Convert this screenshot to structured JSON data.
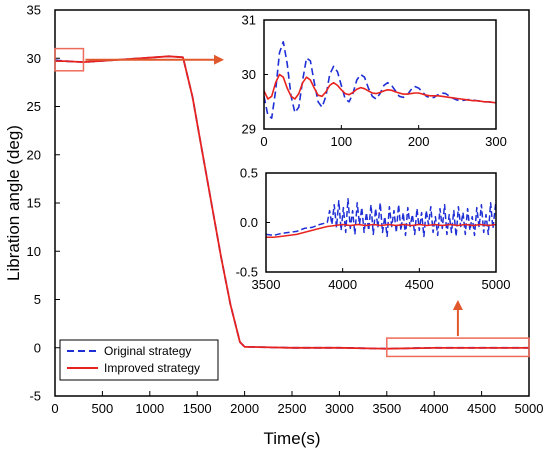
{
  "chart_data": [
    {
      "id": "main",
      "type": "line",
      "xlabel": "Time(s)",
      "ylabel": "Libration angle (deg)",
      "xlim": [
        0,
        5000
      ],
      "ylim": [
        -5,
        35
      ],
      "xticks": [
        0,
        500,
        1000,
        1500,
        2000,
        2500,
        3000,
        3500,
        4000,
        4500,
        5000
      ],
      "yticks": [
        -5,
        0,
        5,
        10,
        15,
        20,
        25,
        30,
        35
      ],
      "grid": false,
      "legend_position": "bottom-left",
      "series": [
        {
          "name": "Original strategy",
          "color": "#1f2fd6",
          "style": "dashed",
          "x": [
            0,
            100,
            300,
            600,
            900,
            1200,
            1350,
            1450,
            1550,
            1650,
            1750,
            1850,
            1950,
            2000,
            2500,
            3000,
            3500,
            4000,
            4500,
            5000
          ],
          "y": [
            29.8,
            29.7,
            29.6,
            29.8,
            30.0,
            30.2,
            30.1,
            26.0,
            20.5,
            15.0,
            9.5,
            4.5,
            0.6,
            0.1,
            0.0,
            0.0,
            -0.1,
            0.0,
            0.0,
            0.0
          ]
        },
        {
          "name": "Improved strategy",
          "color": "#e8231f",
          "style": "solid",
          "x": [
            0,
            100,
            300,
            600,
            900,
            1200,
            1350,
            1450,
            1550,
            1650,
            1750,
            1850,
            1950,
            2000,
            2500,
            3000,
            3500,
            4000,
            4500,
            5000
          ],
          "y": [
            29.7,
            29.7,
            29.6,
            29.8,
            30.0,
            30.2,
            30.1,
            26.0,
            20.5,
            15.0,
            9.5,
            4.5,
            0.6,
            0.1,
            0.0,
            0.0,
            -0.1,
            -0.02,
            -0.02,
            -0.02
          ]
        }
      ],
      "annotations": [
        {
          "type": "box",
          "x_range": [
            0,
            300
          ],
          "y_range": [
            28.7,
            31.0
          ],
          "color": "#ee6b5a"
        },
        {
          "type": "box",
          "x_range": [
            3500,
            5000
          ],
          "y_range": [
            -0.9,
            1.0
          ],
          "color": "#ee6b5a"
        },
        {
          "type": "arrow",
          "color": "#e0582b"
        }
      ]
    },
    {
      "id": "inset-top",
      "type": "line",
      "xlim": [
        0,
        300
      ],
      "ylim": [
        29,
        31
      ],
      "xticks": [
        0,
        100,
        200,
        300
      ],
      "yticks": [
        29,
        30,
        31
      ],
      "series": [
        {
          "name": "Original strategy",
          "color": "#1f2fd6",
          "style": "dashed",
          "x": [
            0,
            5,
            10,
            15,
            20,
            25,
            30,
            35,
            40,
            45,
            50,
            55,
            60,
            65,
            70,
            75,
            80,
            85,
            90,
            95,
            100,
            105,
            110,
            115,
            120,
            125,
            130,
            135,
            140,
            145,
            150,
            155,
            160,
            165,
            170,
            175,
            180,
            185,
            190,
            195,
            200,
            205,
            210,
            215,
            220,
            225,
            230,
            235,
            240,
            245,
            250,
            255,
            260,
            265,
            270,
            275,
            280,
            285,
            290,
            295,
            300
          ],
          "y": [
            29.6,
            29.25,
            29.2,
            29.7,
            30.4,
            30.6,
            30.2,
            29.6,
            29.3,
            29.4,
            29.9,
            30.3,
            30.25,
            29.85,
            29.5,
            29.4,
            29.6,
            30.0,
            30.15,
            30.05,
            29.8,
            29.55,
            29.5,
            29.65,
            29.9,
            30.0,
            29.95,
            29.75,
            29.6,
            29.55,
            29.65,
            29.8,
            29.85,
            29.8,
            29.7,
            29.6,
            29.58,
            29.62,
            29.72,
            29.78,
            29.75,
            29.68,
            29.6,
            29.57,
            29.58,
            29.63,
            29.66,
            29.65,
            29.6,
            29.56,
            29.53,
            29.52,
            29.53,
            29.54,
            29.53,
            29.52,
            29.51,
            29.5,
            29.5,
            29.49,
            29.48
          ]
        },
        {
          "name": "Improved strategy",
          "color": "#e8231f",
          "style": "solid",
          "x": [
            0,
            5,
            10,
            15,
            20,
            25,
            30,
            35,
            40,
            45,
            50,
            55,
            60,
            65,
            70,
            75,
            80,
            85,
            90,
            95,
            100,
            105,
            110,
            115,
            120,
            125,
            130,
            135,
            140,
            145,
            150,
            155,
            160,
            165,
            170,
            175,
            180,
            185,
            190,
            195,
            200,
            205,
            210,
            215,
            220,
            225,
            230,
            235,
            240,
            245,
            250,
            255,
            260,
            265,
            270,
            275,
            280,
            285,
            290,
            295,
            300
          ],
          "y": [
            29.7,
            29.55,
            29.6,
            29.85,
            30.0,
            29.95,
            29.75,
            29.6,
            29.55,
            29.65,
            29.85,
            29.95,
            29.9,
            29.75,
            29.62,
            29.6,
            29.68,
            29.8,
            29.85,
            29.8,
            29.72,
            29.65,
            29.63,
            29.67,
            29.73,
            29.76,
            29.74,
            29.7,
            29.66,
            29.65,
            29.67,
            29.7,
            29.72,
            29.71,
            29.68,
            29.66,
            29.64,
            29.64,
            29.65,
            29.66,
            29.66,
            29.64,
            29.62,
            29.61,
            29.61,
            29.61,
            29.6,
            29.59,
            29.58,
            29.57,
            29.56,
            29.55,
            29.54,
            29.53,
            29.52,
            29.52,
            29.51,
            29.5,
            29.5,
            29.49,
            29.48
          ]
        }
      ]
    },
    {
      "id": "inset-bottom",
      "type": "line",
      "xlim": [
        3500,
        5000
      ],
      "ylim": [
        -0.5,
        0.5
      ],
      "xticks": [
        3500,
        4000,
        4500,
        5000
      ],
      "yticks": [
        -0.5,
        0.0,
        0.5
      ],
      "series": [
        {
          "name": "Original strategy",
          "color": "#1f2fd6",
          "style": "dashed",
          "x": [
            3500,
            3550,
            3600,
            3650,
            3700,
            3750,
            3800,
            3850,
            3900,
            3915,
            3930,
            3945,
            3960,
            3975,
            3990,
            4005,
            4020,
            4035,
            4050,
            4065,
            4080,
            4095,
            4110,
            4125,
            4140,
            4155,
            4170,
            4185,
            4200,
            4215,
            4230,
            4245,
            4260,
            4275,
            4290,
            4305,
            4320,
            4335,
            4350,
            4365,
            4380,
            4395,
            4410,
            4425,
            4440,
            4455,
            4470,
            4485,
            4500,
            4515,
            4530,
            4545,
            4560,
            4575,
            4590,
            4605,
            4620,
            4635,
            4650,
            4665,
            4680,
            4695,
            4710,
            4725,
            4740,
            4755,
            4770,
            4785,
            4800,
            4815,
            4830,
            4845,
            4860,
            4875,
            4890,
            4905,
            4920,
            4935,
            4950,
            4965,
            4980,
            5000
          ],
          "y": [
            -0.12,
            -0.13,
            -0.11,
            -0.1,
            -0.09,
            -0.06,
            -0.05,
            -0.02,
            0.0,
            0.12,
            -0.02,
            0.18,
            -0.05,
            0.22,
            -0.08,
            0.15,
            -0.1,
            0.24,
            -0.06,
            0.12,
            -0.12,
            0.2,
            -0.02,
            0.15,
            -0.1,
            0.1,
            -0.08,
            0.18,
            -0.12,
            0.14,
            -0.05,
            0.2,
            -0.1,
            0.06,
            -0.14,
            0.16,
            -0.04,
            0.12,
            -0.1,
            0.18,
            -0.08,
            0.1,
            -0.13,
            0.15,
            -0.04,
            0.08,
            -0.12,
            0.14,
            -0.08,
            0.1,
            -0.14,
            0.12,
            -0.02,
            0.16,
            -0.1,
            0.06,
            -0.13,
            0.14,
            -0.06,
            0.18,
            -0.12,
            0.08,
            -0.1,
            0.12,
            -0.14,
            0.16,
            -0.04,
            0.1,
            -0.12,
            0.14,
            -0.08,
            0.06,
            -0.13,
            0.15,
            -0.05,
            0.18,
            -0.1,
            0.08,
            -0.12,
            0.2,
            -0.06,
            0.22
          ]
        },
        {
          "name": "Improved strategy",
          "color": "#e8231f",
          "style": "solid",
          "x": [
            3500,
            3550,
            3600,
            3650,
            3700,
            3750,
            3800,
            3850,
            3900,
            3950,
            4000,
            4050,
            4100,
            4150,
            4200,
            4250,
            4300,
            4350,
            4400,
            4450,
            4500,
            4550,
            4600,
            4650,
            4700,
            4750,
            4800,
            4850,
            4900,
            4950,
            5000
          ],
          "y": [
            -0.15,
            -0.15,
            -0.14,
            -0.13,
            -0.12,
            -0.1,
            -0.08,
            -0.06,
            -0.04,
            -0.03,
            -0.02,
            -0.03,
            -0.02,
            -0.03,
            -0.02,
            -0.03,
            -0.02,
            -0.03,
            -0.02,
            -0.03,
            -0.02,
            -0.03,
            -0.02,
            -0.03,
            -0.02,
            -0.03,
            -0.02,
            -0.03,
            -0.02,
            -0.03,
            -0.02
          ]
        }
      ]
    }
  ]
}
